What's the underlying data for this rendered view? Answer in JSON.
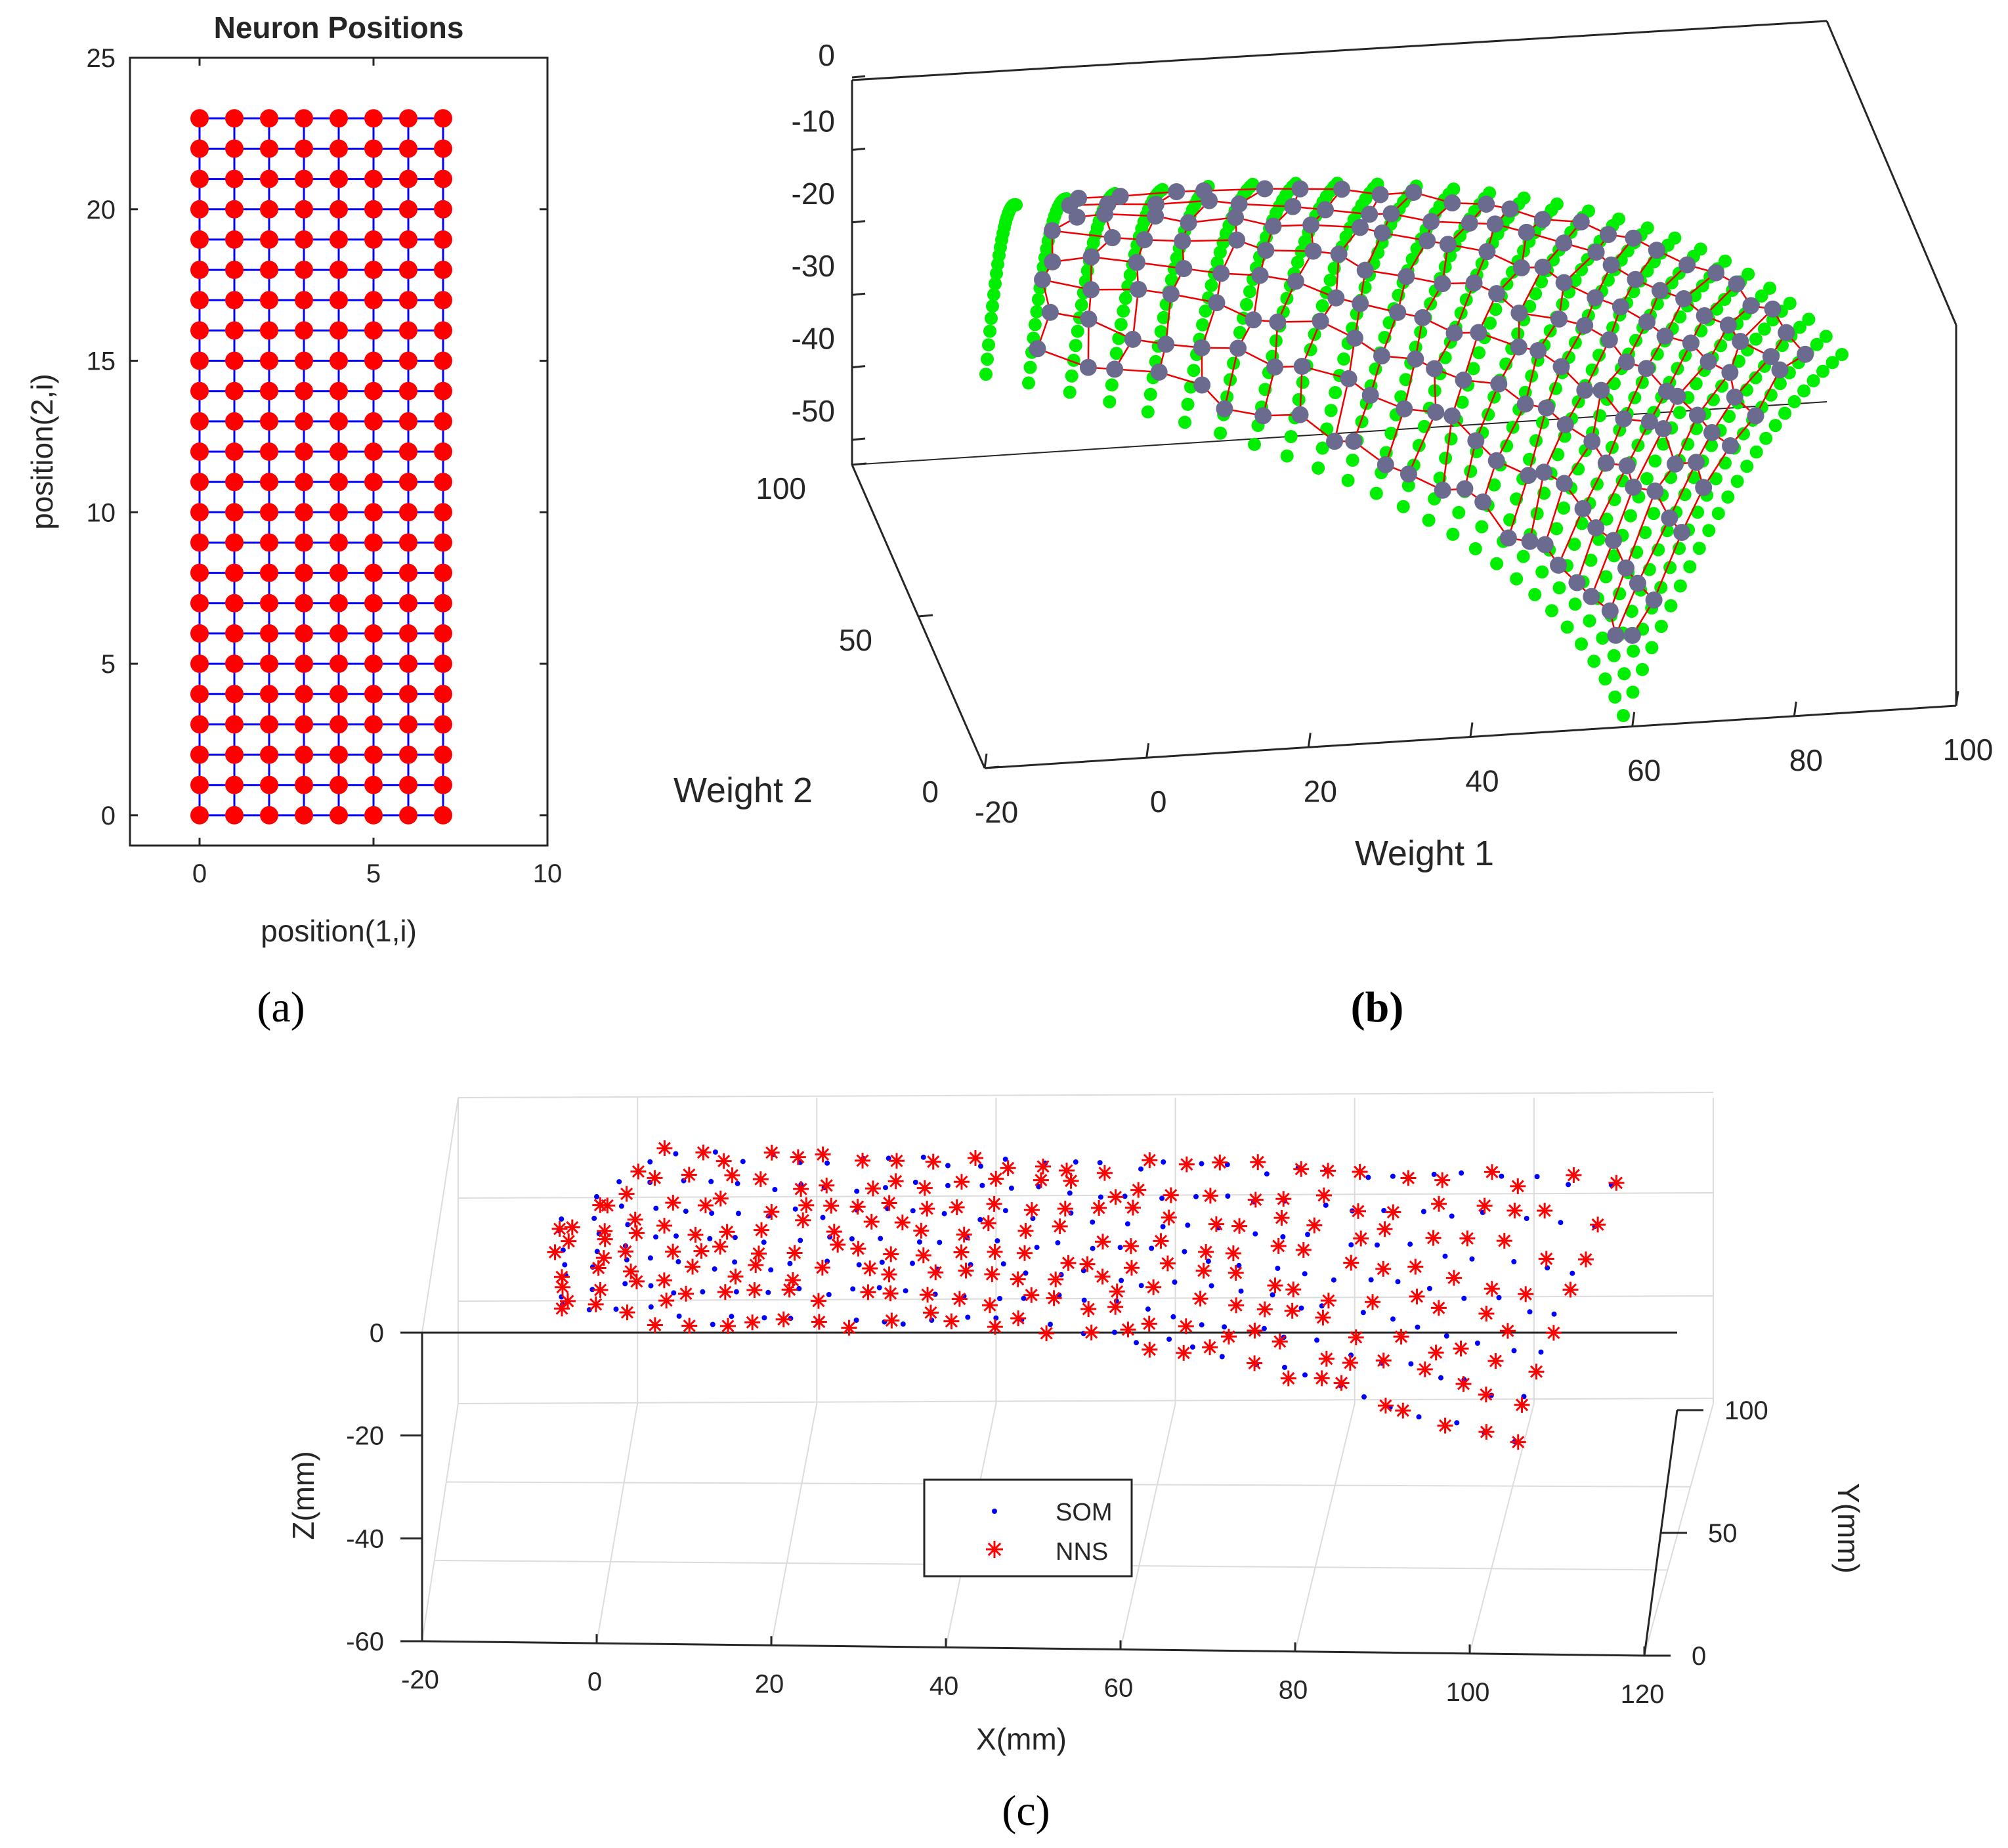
{
  "chart_data": [
    {
      "panel": "(a)",
      "type": "scatter",
      "title": "Neuron Positions",
      "xlabel": "position(1,i)",
      "ylabel": "position(2,i)",
      "xlim": [
        -2,
        10
      ],
      "ylim": [
        -1,
        25
      ],
      "xticks": [
        "0",
        "5",
        "10"
      ],
      "xtick_values": [
        0,
        5,
        10
      ],
      "yticks": [
        "0",
        "5",
        "10",
        "15",
        "20",
        "25"
      ],
      "ytick_values": [
        0,
        5,
        10,
        15,
        20,
        25
      ],
      "grid_x": [
        0,
        1,
        2,
        3,
        4,
        5,
        6,
        7
      ],
      "grid_y": [
        0,
        1,
        2,
        3,
        4,
        5,
        6,
        7,
        8,
        9,
        10,
        11,
        12,
        13,
        14,
        15,
        16,
        17,
        18,
        19,
        20,
        21,
        22,
        23
      ],
      "neuron_color": "#ff0000",
      "link_color": "#0000ff"
    },
    {
      "panel": "(b)",
      "type": "scatter",
      "xlabel": "Weight 1",
      "ylabel": "Weight 2",
      "xticks": [
        "-20",
        "0",
        "20",
        "40",
        "60",
        "80",
        "100"
      ],
      "yticks": [
        "0",
        "50",
        "100"
      ],
      "zticks": [
        "0",
        "-10",
        "-20",
        "-30",
        "-40",
        "-50"
      ],
      "xlim": [
        -20,
        100
      ],
      "ylim": [
        0,
        100
      ],
      "zlim": [
        -55,
        0
      ],
      "input_points_color": "#00ee00",
      "neuron_color": "#6b6b8f",
      "link_color": "#ee0000",
      "surface_rows": 26,
      "surface_cols": 24,
      "som_rows": 8,
      "som_cols": 24
    },
    {
      "panel": "(c)",
      "type": "scatter",
      "xlabel": "X(mm)",
      "ylabel": "Y(mm)",
      "zlabel": "Z(mm)",
      "xticks": [
        "-20",
        "0",
        "20",
        "40",
        "60",
        "80",
        "100",
        "120"
      ],
      "yticks": [
        "0",
        "50",
        "100"
      ],
      "zticks": [
        "0",
        "-20",
        "-40",
        "-60"
      ],
      "xlim": [
        -20,
        120
      ],
      "ylim": [
        0,
        100
      ],
      "zlim": [
        -60,
        0
      ],
      "grid": true,
      "legend_position": "lower-center",
      "series": [
        {
          "name": "SOM",
          "marker": "dot",
          "color": "#0000ff"
        },
        {
          "name": "NNS",
          "marker": "asterisk",
          "color": "#ff0000"
        }
      ]
    }
  ],
  "panel_labels": [
    "(a)",
    "(b)",
    "(c)"
  ]
}
